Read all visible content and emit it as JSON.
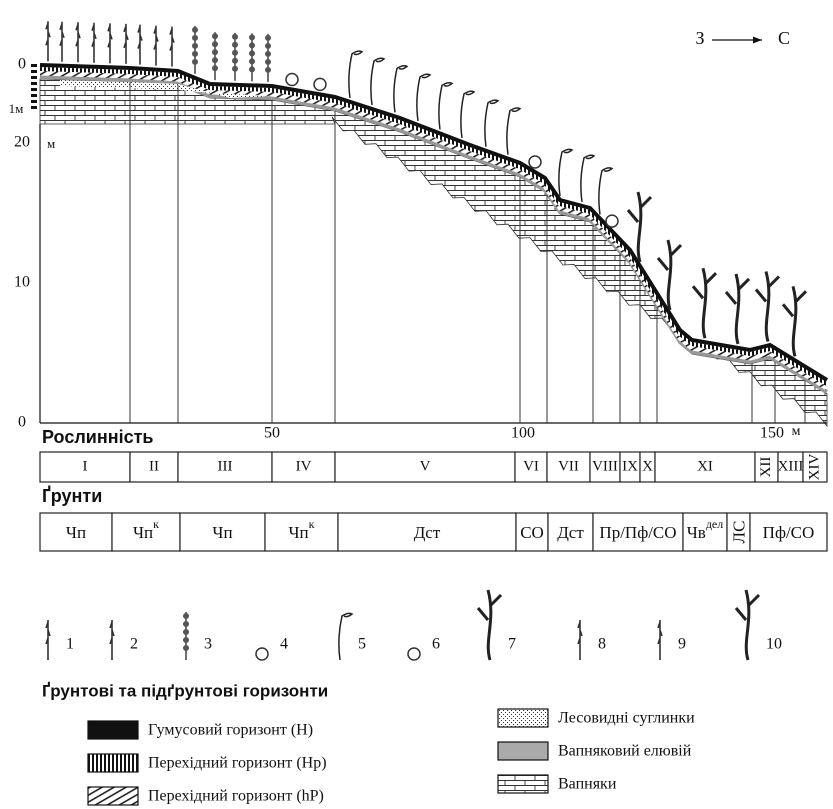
{
  "direction": {
    "from": "З",
    "to": "С"
  },
  "left_axis": {
    "top": "0",
    "ruler": "1м",
    "ticks": [
      "20",
      "10",
      "0"
    ],
    "unit": "м"
  },
  "bottom_axis": {
    "ticks": [
      "50",
      "100",
      "150"
    ],
    "unit": "м"
  },
  "vegetation": {
    "title": "Рослинність",
    "units": [
      "I",
      "II",
      "III",
      "IV",
      "V",
      "VI",
      "VII",
      "VIII",
      "IX",
      "X",
      "XI",
      "XII",
      "XIII",
      "XIV"
    ]
  },
  "soils": {
    "title": "Ґрунти",
    "units": [
      {
        "main": "Чп"
      },
      {
        "main": "Чп",
        "sup": "к"
      },
      {
        "main": "Чп"
      },
      {
        "main": "Чп",
        "sup": "к"
      },
      {
        "main": "Дст"
      },
      {
        "main": "СО"
      },
      {
        "main": "Дст"
      },
      {
        "main": "Пр/Пф/СО"
      },
      {
        "main": "Чв",
        "sup": "дел"
      },
      {
        "main": "ЛС"
      },
      {
        "main": "Пф/СО"
      }
    ]
  },
  "plant_legend": [
    "1",
    "2",
    "3",
    "4",
    "5",
    "6",
    "7",
    "8",
    "9",
    "10"
  ],
  "horizons": {
    "title": "Ґрунтові та підґрунтові горизонти",
    "items": [
      "Гумусовий горизонт (Н)",
      "Перехідний горизонт (Нр)",
      "Перехідний горизонт (hP)",
      "Лесовидні суглинки",
      "Вапняковий елювій",
      "Вапняки"
    ]
  }
}
